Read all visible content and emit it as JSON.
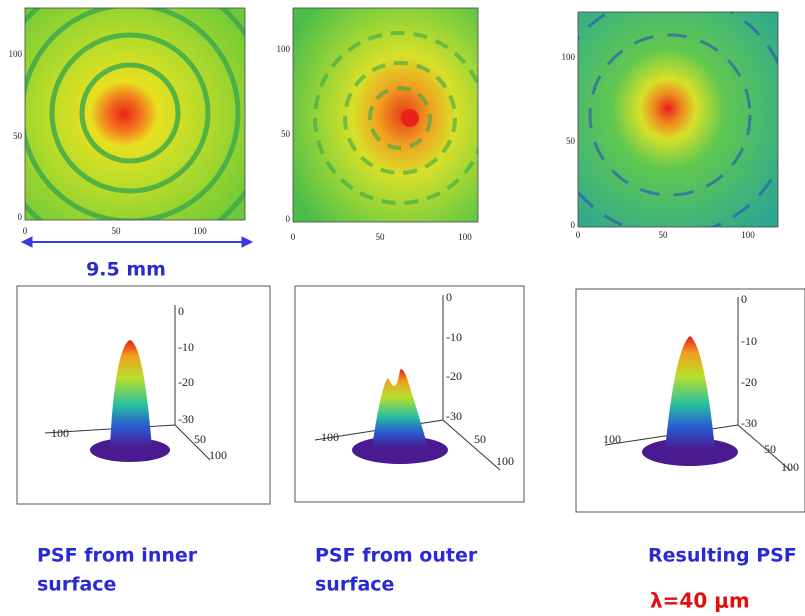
{
  "scale_label": "9.5 mm",
  "wavelength": "λ=40 μm",
  "panels": [
    {
      "heatmap": {
        "yticks": [
          "100",
          "50",
          "0"
        ],
        "xticks": [
          "0",
          "50",
          "100"
        ]
      },
      "surface": {
        "zticks": [
          "0",
          "-10",
          "-20",
          "-30"
        ],
        "axis_labels": [
          "100",
          "50",
          "100"
        ]
      },
      "caption": [
        "PSF from inner",
        "surface"
      ]
    },
    {
      "heatmap": {
        "yticks": [
          "100",
          "50",
          "0"
        ],
        "xticks": [
          "0",
          "50",
          "100"
        ]
      },
      "surface": {
        "zticks": [
          "0",
          "-10",
          "-20",
          "-30"
        ],
        "axis_labels": [
          "100",
          "50",
          "100"
        ]
      },
      "caption": [
        "PSF from outer",
        "surface"
      ]
    },
    {
      "heatmap": {
        "yticks": [
          "100",
          "50",
          "0"
        ],
        "xticks": [
          "0",
          "50",
          "100"
        ]
      },
      "surface": {
        "zticks": [
          "0",
          "-10",
          "-20",
          "-30"
        ],
        "axis_labels": [
          "100",
          "50",
          "100"
        ]
      },
      "caption": [
        "Resulting PSF"
      ]
    }
  ]
}
